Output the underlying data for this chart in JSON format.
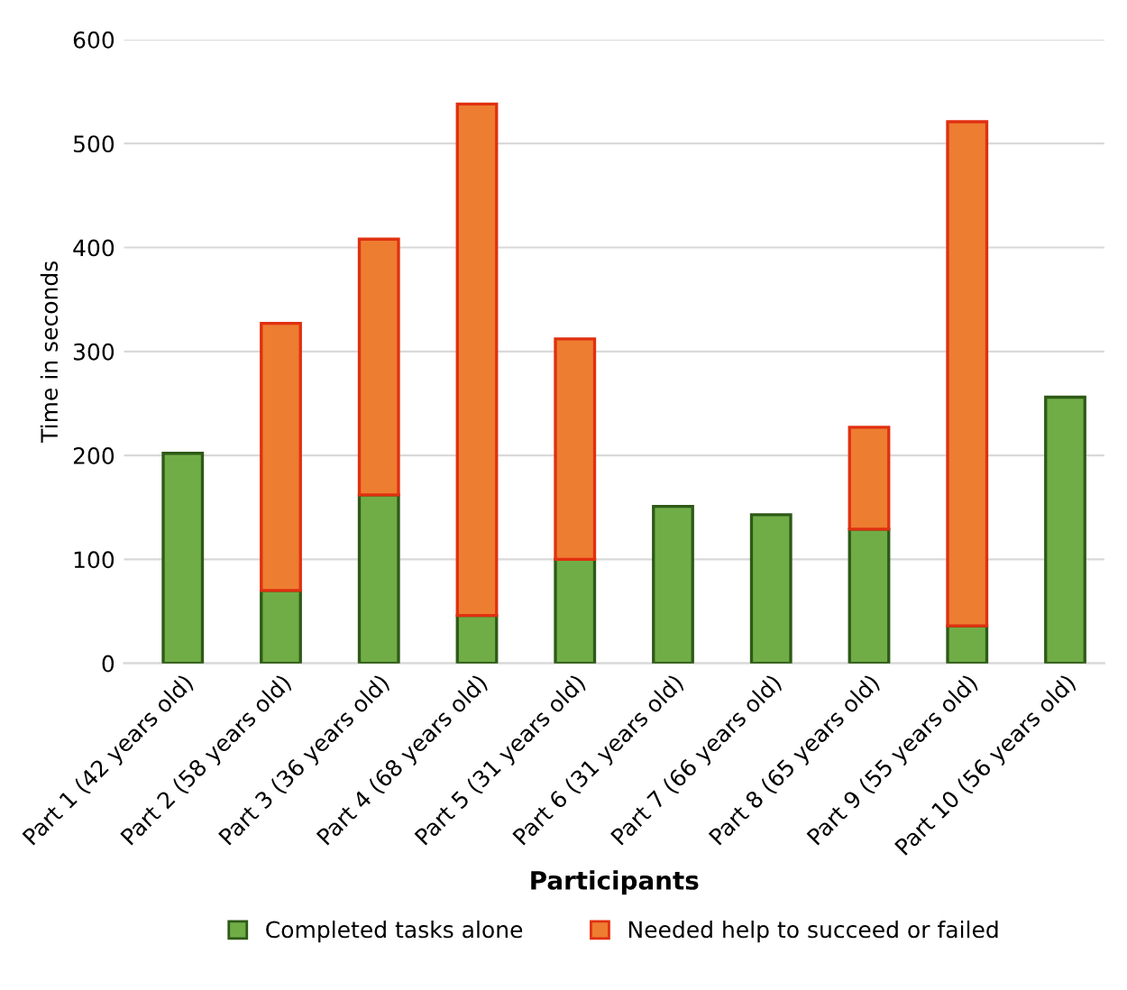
{
  "chart_data": {
    "type": "bar",
    "stacked": true,
    "xlabel": "Participants",
    "ylabel": "Time in seconds",
    "categories": [
      "Part 1 (42 years old)",
      "Part 2 (58 years old)",
      "Part 3 (36 years old)",
      "Part 4 (68 years old)",
      "Part 5 (31 years old)",
      "Part 6 (31 years old)",
      "Part 7 (66 years old)",
      "Part 8 (65 years old)",
      "Part 9 (55 years old)",
      "Part 10 (56 years old)"
    ],
    "series": [
      {
        "name": "Completed tasks alone",
        "color": "#70ad47",
        "values": [
          202,
          70,
          162,
          46,
          100,
          151,
          143,
          129,
          36,
          256
        ]
      },
      {
        "name": "Needed help to succeed or failed",
        "color": "#ed7d31",
        "values": [
          null,
          257,
          246,
          492,
          212,
          null,
          null,
          98,
          485,
          null
        ]
      }
    ],
    "ylim": [
      0,
      600
    ],
    "yticks": [
      0,
      100,
      200,
      300,
      400,
      500,
      600
    ],
    "grid": "y",
    "legend": "bottom"
  }
}
